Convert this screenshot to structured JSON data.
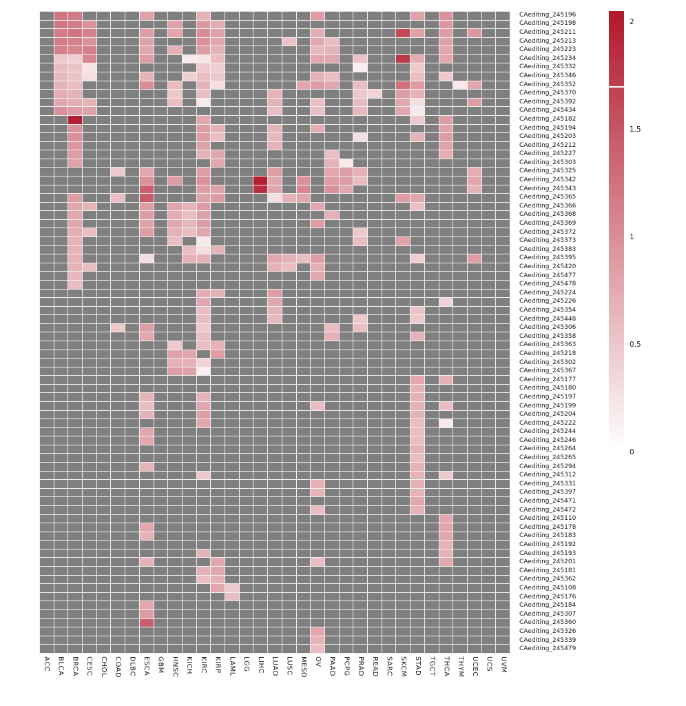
{
  "figure": {
    "background": "#ffffff",
    "grid_line_color": "#f0f0f0",
    "text_color": "#1a1a1a"
  },
  "chart_data": {
    "type": "heatmap",
    "columns": [
      "ACC",
      "BLCA",
      "BRCA",
      "CESC",
      "CHOL",
      "COAD",
      "DLBC",
      "ESCA",
      "GBM",
      "HNSC",
      "KICH",
      "KIRC",
      "KIRP",
      "LAML",
      "LGG",
      "LIHC",
      "LUAD",
      "LUSC",
      "MESO",
      "OV",
      "PAAD",
      "PCPG",
      "PRAD",
      "READ",
      "SARC",
      "SKCM",
      "STAD",
      "TGCT",
      "THCA",
      "THYM",
      "UCEC",
      "UCS",
      "UVM"
    ],
    "color_scale": {
      "min": 0,
      "max": 2.1,
      "min_color": "#ffffff",
      "max_color": "#b2182b",
      "na_color": "#7f7f7f"
    },
    "legend": {
      "position": "right",
      "ticks": [
        "2",
        "1.5",
        "1",
        "0.5",
        "0"
      ],
      "tick_values": [
        2,
        1.5,
        1,
        0.5,
        0
      ],
      "max_value": 2.05,
      "break_value": 1.7
    },
    "rows": [
      {
        "label": "CAediting_245196",
        "values": {
          "BLCA": 1.25,
          "BRCA": 1.2,
          "ESCA": 0.85,
          "KIRC": 0.7,
          "OV": 0.9,
          "STAD": 0.85,
          "THCA": 1.0
        }
      },
      {
        "label": "CAediting_245198",
        "values": {
          "BLCA": 1.25,
          "BRCA": 1.2,
          "CESC": 1.0,
          "HNSC": 0.85,
          "KIRC": 0.95,
          "KIRP": 0.75,
          "THCA": 0.95
        }
      },
      {
        "label": "CAediting_245211",
        "values": {
          "BLCA": 1.2,
          "BRCA": 1.25,
          "CESC": 1.15,
          "ESCA": 0.9,
          "HNSC": 0.8,
          "KIRC": 1.05,
          "KIRP": 0.85,
          "OV": 0.75,
          "SKCM": 1.65,
          "STAD": 0.85,
          "THCA": 0.9,
          "UCEC": 0.95
        }
      },
      {
        "label": "CAediting_245213",
        "values": {
          "BLCA": 1.2,
          "BRCA": 1.15,
          "CESC": 1.0,
          "ESCA": 0.85,
          "KIRC": 1.0,
          "KIRP": 0.8,
          "LUSC": 0.55,
          "OV": 0.8,
          "PAAD": 0.6,
          "THCA": 0.85
        }
      },
      {
        "label": "CAediting_245223",
        "values": {
          "BLCA": 1.15,
          "BRCA": 1.1,
          "CESC": 1.15,
          "ESCA": 0.8,
          "HNSC": 0.7,
          "KIRC": 0.9,
          "KIRP": 0.7,
          "OV": 0.65,
          "PAAD": 0.7,
          "THCA": 0.8
        }
      },
      {
        "label": "CAediting_245234",
        "values": {
          "BLCA": 0.5,
          "BRCA": 0.45,
          "CESC": 1.1,
          "ESCA": 0.9,
          "KICH": 0.2,
          "KIRC": 0.25,
          "KIRP": 0.6,
          "OV": 0.8,
          "PAAD": 0.8,
          "PRAD": 0.55,
          "SKCM": 1.8,
          "STAD": 0.75,
          "THCA": 0.8
        }
      },
      {
        "label": "CAediting_245332",
        "values": {
          "BLCA": 0.6,
          "BRCA": 0.55,
          "CESC": 0.25,
          "KIRC": 0.5,
          "KIRP": 0.45,
          "PRAD": 0.15,
          "STAD": 0.5
        }
      },
      {
        "label": "CAediting_245346",
        "values": {
          "BLCA": 0.65,
          "BRCA": 0.55,
          "CESC": 0.3,
          "ESCA": 0.7,
          "KICH": 0.45,
          "KIRC": 0.6,
          "KIRP": 0.5,
          "OV": 0.7,
          "PAAD": 0.6,
          "STAD": 0.6,
          "THCA": 0.5
        }
      },
      {
        "label": "CAediting_245352",
        "values": {
          "BLCA": 0.7,
          "BRCA": 0.6,
          "ESCA": 1.05,
          "HNSC": 0.6,
          "KIRC": 0.7,
          "KIRP": 0.3,
          "MESO": 0.8,
          "OV": 0.9,
          "PAAD": 0.8,
          "PRAD": 0.6,
          "SKCM": 1.3,
          "STAD": 0.9,
          "THYM": 0.2,
          "UCEC": 0.8
        }
      },
      {
        "label": "CAediting_245370",
        "values": {
          "BLCA": 0.75,
          "BRCA": 0.7,
          "HNSC": 0.5,
          "KIRC": 0.6,
          "LUAD": 0.7,
          "PRAD": 0.5,
          "READ": 0.4,
          "SKCM": 0.9,
          "STAD": 0.7
        }
      },
      {
        "label": "CAediting_245392",
        "values": {
          "BLCA": 0.8,
          "BRCA": 0.75,
          "CESC": 0.7,
          "HNSC": 0.6,
          "KIRC": 0.2,
          "LUAD": 0.7,
          "OV": 0.6,
          "PRAD": 0.6,
          "SKCM": 0.8,
          "STAD": 0.3,
          "UCEC": 0.9
        }
      },
      {
        "label": "CAediting_245434",
        "values": {
          "BLCA": 1.0,
          "BRCA": 0.9,
          "CESC": 0.85,
          "LUAD": 0.6,
          "OV": 0.6,
          "PRAD": 0.65,
          "SKCM": 0.8,
          "STAD": 0.2
        }
      },
      {
        "label": "CAediting_245182",
        "values": {
          "BRCA": 2.05,
          "KIRC": 0.8,
          "STAD": 0.5,
          "THCA": 0.9
        }
      },
      {
        "label": "CAediting_245194",
        "values": {
          "BRCA": 1.0,
          "KIRC": 0.9,
          "KIRP": 0.7,
          "LUAD": 0.7,
          "OV": 0.75,
          "THCA": 0.85
        }
      },
      {
        "label": "CAediting_245203",
        "values": {
          "BRCA": 1.0,
          "KIRC": 0.9,
          "KIRP": 0.6,
          "LUAD": 0.65,
          "PRAD": 0.3,
          "STAD": 0.7,
          "THCA": 0.9
        }
      },
      {
        "label": "CAediting_245212",
        "values": {
          "BRCA": 0.95,
          "KIRC": 0.85,
          "LUAD": 0.7,
          "THCA": 0.85
        }
      },
      {
        "label": "CAediting_245227",
        "values": {
          "BRCA": 0.9,
          "KIRC": 0.7,
          "KIRP": 0.8,
          "PAAD": 0.6,
          "THCA": 0.75
        }
      },
      {
        "label": "CAediting_245303",
        "values": {
          "BRCA": 0.85,
          "KIRP": 0.8,
          "PAAD": 0.7,
          "PCPG": 0.2
        }
      },
      {
        "label": "CAediting_245325",
        "values": {
          "COAD": 0.5,
          "ESCA": 0.8,
          "KIRC": 0.9,
          "LUAD": 0.9,
          "PAAD": 0.8,
          "PCPG": 0.9,
          "PRAD": 0.7,
          "UCEC": 0.75
        }
      },
      {
        "label": "CAediting_245342",
        "values": {
          "ESCA": 1.0,
          "HNSC": 0.9,
          "KIRC": 1.0,
          "LIHC": 2.05,
          "LUAD": 0.8,
          "MESO": 1.0,
          "PAAD": 0.9,
          "PCPG": 0.9,
          "PRAD": 0.6,
          "UCEC": 0.8
        }
      },
      {
        "label": "CAediting_245343",
        "values": {
          "ESCA": 1.45,
          "KIRC": 0.9,
          "KIRP": 0.85,
          "LIHC": 1.9,
          "LUAD": 0.8,
          "MESO": 1.1,
          "PAAD": 1.0,
          "PCPG": 0.8,
          "UCEC": 0.7
        }
      },
      {
        "label": "CAediting_245365",
        "values": {
          "BRCA": 0.9,
          "COAD": 0.6,
          "ESCA": 1.5,
          "KIRC": 0.85,
          "KIRP": 0.9,
          "LUAD": 0.3,
          "LUSC": 0.7,
          "MESO": 0.8,
          "SKCM": 0.9,
          "STAD": 0.8
        }
      },
      {
        "label": "CAediting_245366",
        "values": {
          "BRCA": 0.8,
          "CESC": 0.7,
          "ESCA": 0.9,
          "HNSC": 0.8,
          "KICH": 0.7,
          "KIRC": 0.9,
          "OV": 0.8,
          "STAD": 0.6
        }
      },
      {
        "label": "CAediting_245368",
        "values": {
          "BRCA": 0.8,
          "ESCA": 0.9,
          "HNSC": 0.75,
          "KICH": 0.6,
          "KIRC": 0.85,
          "PAAD": 0.7
        }
      },
      {
        "label": "CAediting_245369",
        "values": {
          "BRCA": 0.8,
          "ESCA": 0.85,
          "HNSC": 0.8,
          "KICH": 0.65,
          "KIRC": 0.9,
          "OV": 0.9
        }
      },
      {
        "label": "CAediting_245372",
        "values": {
          "BRCA": 0.75,
          "CESC": 0.6,
          "ESCA": 0.9,
          "HNSC": 0.7,
          "KICH": 0.6,
          "KIRC": 0.8,
          "PRAD": 0.5
        }
      },
      {
        "label": "CAediting_245373",
        "values": {
          "BRCA": 0.7,
          "HNSC": 0.6,
          "KIRC": 0.2,
          "PRAD": 0.6,
          "SKCM": 0.85
        }
      },
      {
        "label": "CAediting_245383",
        "values": {
          "BRCA": 0.7,
          "KICH": 0.6,
          "KIRC": 0.3,
          "KIRP": 0.7
        }
      },
      {
        "label": "CAediting_245395",
        "values": {
          "BRCA": 0.7,
          "ESCA": 0.3,
          "KICH": 0.7,
          "KIRC": 0.7,
          "LUAD": 0.8,
          "LUSC": 0.7,
          "MESO": 0.6,
          "OV": 0.9,
          "STAD": 0.45,
          "UCEC": 0.9
        }
      },
      {
        "label": "CAediting_245420",
        "values": {
          "BRCA": 0.7,
          "CESC": 0.6,
          "LUAD": 0.7,
          "LUSC": 0.6,
          "OV": 0.75
        }
      },
      {
        "label": "CAediting_245477",
        "values": {
          "BRCA": 0.65,
          "OV": 0.8
        }
      },
      {
        "label": "CAediting_245478",
        "values": {
          "BRCA": 0.6
        }
      },
      {
        "label": "CAediting_245224",
        "values": {
          "KIRC": 0.75,
          "KIRP": 0.7,
          "LUAD": 0.9
        }
      },
      {
        "label": "CAediting_245226",
        "values": {
          "KIRC": 0.8,
          "LUAD": 0.8,
          "THCA": 0.4
        }
      },
      {
        "label": "CAediting_245354",
        "values": {
          "KIRC": 0.6,
          "LUAD": 0.7,
          "STAD": 0.55
        }
      },
      {
        "label": "CAediting_245448",
        "values": {
          "KIRC": 0.6,
          "LUAD": 0.65,
          "PRAD": 0.5,
          "STAD": 0.5
        }
      },
      {
        "label": "CAediting_245306",
        "values": {
          "COAD": 0.5,
          "ESCA": 0.9,
          "KIRC": 0.5,
          "PAAD": 0.6,
          "PRAD": 0.6
        }
      },
      {
        "label": "CAediting_245358",
        "values": {
          "ESCA": 0.8,
          "KIRC": 0.6,
          "PAAD": 0.7,
          "STAD": 0.7
        }
      },
      {
        "label": "CAediting_245363",
        "values": {
          "HNSC": 0.5,
          "KIRC": 0.6,
          "KIRP": 0.7
        }
      },
      {
        "label": "CAediting_245218",
        "values": {
          "HNSC": 0.85,
          "KICH": 0.8,
          "KIRP": 0.9
        }
      },
      {
        "label": "CAediting_245302",
        "values": {
          "HNSC": 0.7,
          "KICH": 0.7,
          "KIRC": 0.4
        }
      },
      {
        "label": "CAediting_245367",
        "values": {
          "HNSC": 0.9,
          "KICH": 0.85,
          "KIRC": 0.15
        }
      },
      {
        "label": "CAediting_245177",
        "values": {
          "STAD": 0.8,
          "THCA": 0.7
        }
      },
      {
        "label": "CAediting_245180",
        "values": {
          "STAD": 0.7
        }
      },
      {
        "label": "CAediting_245197",
        "values": {
          "ESCA": 0.7,
          "KIRC": 0.7,
          "STAD": 0.7
        }
      },
      {
        "label": "CAediting_245199",
        "values": {
          "ESCA": 0.6,
          "KIRC": 0.8,
          "OV": 0.6,
          "STAD": 0.7,
          "THCA": 0.6
        }
      },
      {
        "label": "CAediting_245204",
        "values": {
          "ESCA": 0.7,
          "KIRC": 0.9,
          "STAD": 0.7
        }
      },
      {
        "label": "CAediting_245222",
        "values": {
          "KIRC": 0.8,
          "STAD": 0.6,
          "THCA": 0.2
        }
      },
      {
        "label": "CAediting_245244",
        "values": {
          "ESCA": 0.8,
          "STAD": 0.6
        }
      },
      {
        "label": "CAediting_245246",
        "values": {
          "ESCA": 0.8,
          "STAD": 0.6
        }
      },
      {
        "label": "CAediting_245264",
        "values": {
          "STAD": 0.7
        }
      },
      {
        "label": "CAediting_245265",
        "values": {
          "STAD": 0.6
        }
      },
      {
        "label": "CAediting_245294",
        "values": {
          "ESCA": 0.7,
          "STAD": 0.7
        }
      },
      {
        "label": "CAediting_245312",
        "values": {
          "KIRC": 0.5,
          "STAD": 0.7,
          "THCA": 0.5
        }
      },
      {
        "label": "CAediting_245331",
        "values": {
          "OV": 0.7,
          "STAD": 0.7
        }
      },
      {
        "label": "CAediting_245397",
        "values": {
          "OV": 0.7,
          "STAD": 0.7
        }
      },
      {
        "label": "CAediting_245471",
        "values": {
          "STAD": 0.8
        }
      },
      {
        "label": "CAediting_245472",
        "values": {
          "OV": 0.6,
          "STAD": 0.7
        }
      },
      {
        "label": "CAediting_245110",
        "values": {
          "THCA": 0.8
        }
      },
      {
        "label": "CAediting_245178",
        "values": {
          "ESCA": 0.8,
          "THCA": 0.8
        }
      },
      {
        "label": "CAediting_245183",
        "values": {
          "ESCA": 0.7,
          "THCA": 0.8
        }
      },
      {
        "label": "CAediting_245192",
        "values": {
          "THCA": 0.7
        }
      },
      {
        "label": "CAediting_245193",
        "values": {
          "KIRC": 0.7,
          "THCA": 0.7
        }
      },
      {
        "label": "CAediting_245201",
        "values": {
          "ESCA": 0.7,
          "KIRP": 0.8,
          "OV": 0.6,
          "THCA": 0.8
        }
      },
      {
        "label": "CAediting_245181",
        "values": {
          "KIRC": 0.7,
          "KIRP": 0.8
        }
      },
      {
        "label": "CAediting_245362",
        "values": {
          "KIRC": 0.6,
          "KIRP": 0.7
        }
      },
      {
        "label": "CAediting_245108",
        "values": {
          "KIRP": 0.8,
          "LAML": 0.5
        }
      },
      {
        "label": "CAediting_245176",
        "values": {
          "LAML": 0.6
        }
      },
      {
        "label": "CAediting_245184",
        "values": {
          "ESCA": 0.8
        }
      },
      {
        "label": "CAediting_245307",
        "values": {
          "ESCA": 0.9
        }
      },
      {
        "label": "CAediting_245360",
        "values": {
          "ESCA": 1.45
        }
      },
      {
        "label": "CAediting_245326",
        "values": {
          "OV": 0.8
        }
      },
      {
        "label": "CAediting_245339",
        "values": {
          "OV": 0.7
        }
      },
      {
        "label": "CAediting_245479",
        "values": {
          "OV": 0.6
        }
      }
    ]
  }
}
